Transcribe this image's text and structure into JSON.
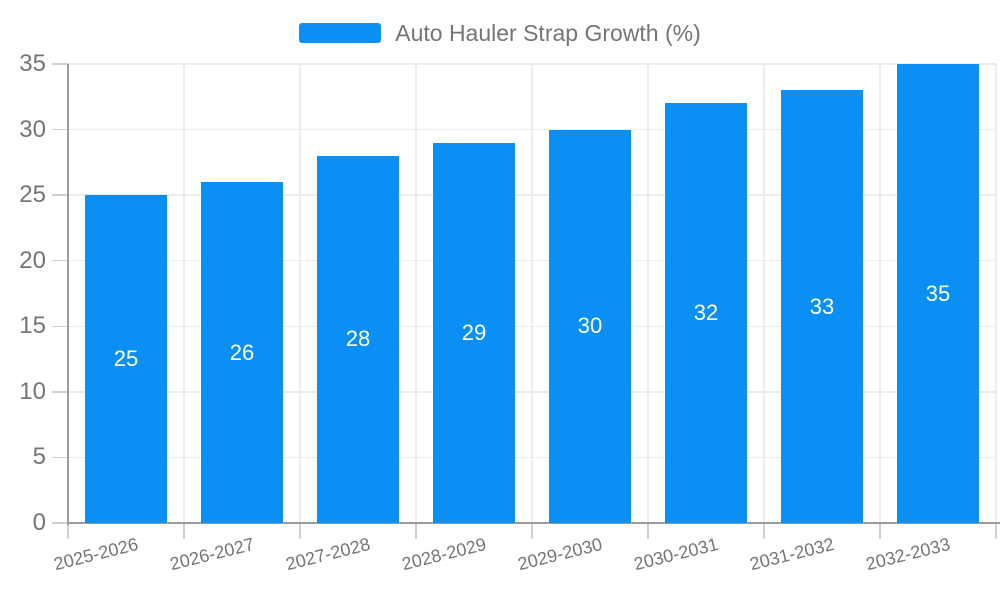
{
  "chart_data": {
    "type": "bar",
    "title": "Auto Hauler Strap Growth (%)",
    "legend": {
      "position": "top",
      "entries": [
        "Auto Hauler Strap Growth (%)"
      ]
    },
    "categories": [
      "2025-2026",
      "2026-2027",
      "2027-2028",
      "2028-2029",
      "2029-2030",
      "2030-2031",
      "2031-2032",
      "2032-2033"
    ],
    "values": [
      25,
      26,
      28,
      29,
      30,
      32,
      33,
      35
    ],
    "xlabel": "",
    "ylabel": "",
    "ylim": [
      0,
      35
    ],
    "yticks": [
      0,
      5,
      10,
      15,
      20,
      25,
      30,
      35
    ],
    "grid": true,
    "value_labels_position": "inside-center",
    "colors": {
      "bar": "#0a90f5",
      "axis_text": "#757575",
      "grid": "#ececec",
      "axis_line": "#9b9b9b",
      "tick": "#cfcfcf",
      "value_label": "#ffffff",
      "background": "#ffffff"
    }
  }
}
